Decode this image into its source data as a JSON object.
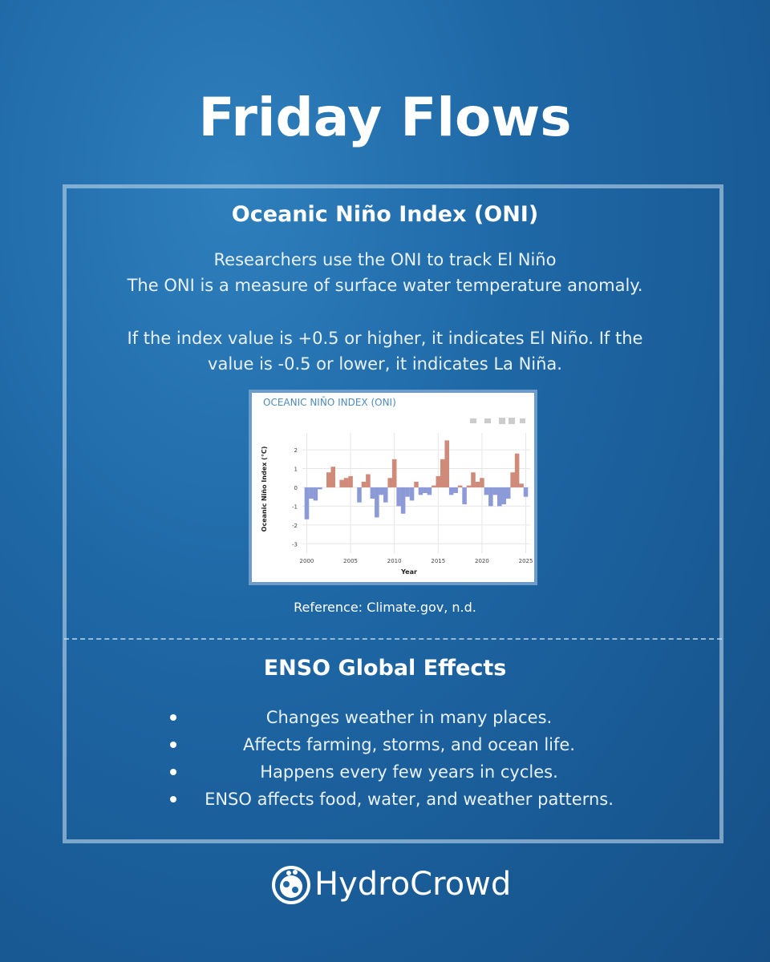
{
  "header": {
    "title": "Friday Flows"
  },
  "oni_section": {
    "heading": "Oceanic Niño Index (ONI)",
    "intro_lines": [
      "Researchers use the ONI to track El Niño",
      "The ONI is a measure of surface water temperature anomaly."
    ],
    "threshold_text": "If the index value is +0.5 or higher, it indicates El Niño. If the value is -0.5 or lower, it indicates La Niña.",
    "reference": "Reference: Climate.gov, n.d."
  },
  "chart_data": {
    "type": "bar",
    "title": "OCEANIC NIÑO INDEX (ONI)",
    "x_label": "Year",
    "y_label": "Oceanic Niño Index (°C)",
    "x": [
      2000,
      2000.5,
      2001,
      2001.5,
      2002,
      2002.5,
      2003,
      2003.5,
      2004,
      2004.5,
      2005,
      2005.5,
      2006,
      2006.5,
      2007,
      2007.5,
      2008,
      2008.5,
      2009,
      2009.5,
      2010,
      2010.5,
      2011,
      2011.5,
      2012,
      2012.5,
      2013,
      2013.5,
      2014,
      2014.5,
      2015,
      2015.5,
      2016,
      2016.5,
      2017,
      2017.5,
      2018,
      2018.5,
      2019,
      2019.5,
      2020,
      2020.5,
      2021,
      2021.5,
      2022,
      2022.5,
      2023,
      2023.5,
      2024,
      2024.5,
      2025
    ],
    "values": [
      -1.7,
      -0.6,
      -0.7,
      -0.1,
      0.0,
      0.8,
      1.1,
      0.0,
      0.4,
      0.5,
      0.6,
      0.0,
      -0.8,
      0.3,
      0.7,
      -0.6,
      -1.6,
      -0.4,
      -0.8,
      0.5,
      1.5,
      -1.0,
      -1.4,
      -0.5,
      -0.7,
      0.3,
      -0.4,
      -0.3,
      -0.4,
      0.1,
      0.6,
      1.5,
      2.5,
      -0.4,
      -0.3,
      0.1,
      -0.9,
      0.1,
      0.8,
      0.3,
      0.5,
      -0.4,
      -1.0,
      -0.4,
      -1.0,
      -0.9,
      -0.6,
      0.8,
      1.8,
      0.2,
      -0.5
    ],
    "positive_color": "#cf8a7a",
    "negative_color": "#8c9bd8",
    "xlim": [
      1999.5,
      2025.5
    ],
    "xticks": [
      2000,
      2005,
      2010,
      2015,
      2020,
      2025
    ],
    "ylim": [
      -3.5,
      2.9
    ],
    "yticks": [
      -3,
      -2,
      -1,
      0,
      1,
      2
    ],
    "grid": true
  },
  "enso_section": {
    "heading": "ENSO Global Effects",
    "bullets": [
      "Changes weather in many places.",
      "Affects farming, storms, and ocean life.",
      "Happens every few years in cycles.",
      "ENSO affects food, water, and weather patterns."
    ]
  },
  "footer": {
    "brand": "HydroCrowd"
  }
}
